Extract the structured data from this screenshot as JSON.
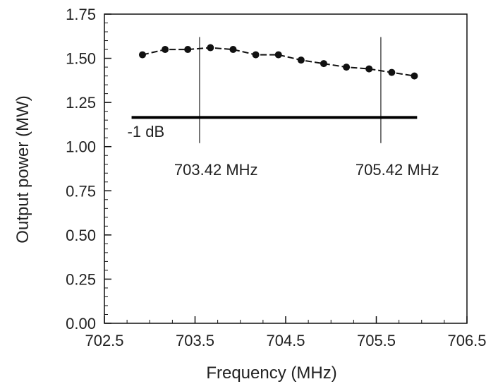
{
  "chart_data": {
    "type": "line",
    "xlabel": "Frequency (MHz)",
    "ylabel": "Output power (MW)",
    "xlim": [
      702.5,
      706.5
    ],
    "ylim": [
      0,
      1.75
    ],
    "x_ticks": [
      "702.5",
      "703.5",
      "704.5",
      "705.5",
      "706.5"
    ],
    "y_ticks": [
      "0.00",
      "0.25",
      "0.50",
      "0.75",
      "1.00",
      "1.25",
      "1.50",
      "1.75"
    ],
    "grid": false,
    "series": [
      {
        "x": [
          702.92,
          703.17,
          703.42,
          703.67,
          703.92,
          704.17,
          704.42,
          704.67,
          704.92,
          705.17,
          705.42,
          705.67,
          705.92
        ],
        "y": [
          1.52,
          1.55,
          1.55,
          1.56,
          1.55,
          1.52,
          1.52,
          1.49,
          1.47,
          1.45,
          1.44,
          1.42,
          1.4
        ]
      }
    ],
    "reference_line": {
      "y": 1.165,
      "x_start": 702.8,
      "x_end": 705.95,
      "label": "-1 dB"
    },
    "markers": [
      {
        "x": 703.55,
        "label": "703.42 MHz"
      },
      {
        "x": 705.55,
        "label": "705.42 MHz"
      }
    ]
  }
}
